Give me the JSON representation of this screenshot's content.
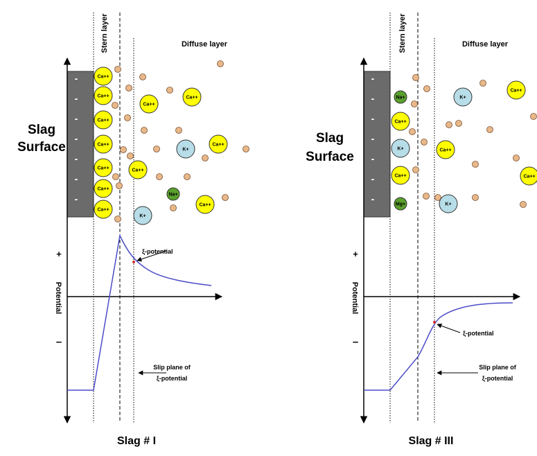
{
  "panels": [
    {
      "stern_label": "Stern layer",
      "diffuse_label": "Diffuse layer",
      "surface_label": [
        "Slag",
        "Surface"
      ],
      "surface_charge": "-",
      "plus": "+",
      "minus": "–",
      "axis_label": "Potential",
      "zeta_label": "ξ-potential",
      "slip_label": [
        "Slip plane of",
        "ξ-potential"
      ],
      "caption": "Slag # I",
      "ions": [
        "Ca++",
        "Ca++",
        "Ca++",
        "Ca++",
        "Ca++",
        "Ca++",
        "Ca++",
        "Ca++",
        "Ca++",
        "Ca++",
        "Ca++",
        "Ca++",
        "K+",
        "K+",
        "Na+"
      ]
    },
    {
      "stern_label": "Stern layer",
      "diffuse_label": "Diffuse layer",
      "surface_label": [
        "Slag",
        "Surface"
      ],
      "surface_charge": "-",
      "plus": "+",
      "minus": "–",
      "axis_label": "Potential",
      "zeta_label": "ξ-potential",
      "slip_label": [
        "Slip plane of",
        "ξ-potential"
      ],
      "caption": "Slag # III",
      "ions": [
        "Na+",
        "Ca++",
        "K+",
        "Ca++",
        "Mg+",
        "K+",
        "Ca++",
        "Ca++",
        "Ca++",
        "K+"
      ]
    }
  ]
}
